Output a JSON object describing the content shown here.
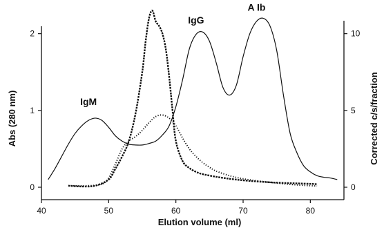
{
  "chart_data": {
    "type": "line",
    "title": "",
    "xlabel": "Elution volume (ml)",
    "ylabel": "Abs (280 nm)",
    "ylabel_right": "Corrected c/s/fraction",
    "xlim": [
      40,
      85
    ],
    "ylim": [
      0,
      2.33
    ],
    "ylim_right": [
      0,
      11.65
    ],
    "xticks": [
      40,
      50,
      60,
      70,
      80
    ],
    "yticks": [
      0,
      1,
      2
    ],
    "yticks_right": [
      0,
      5,
      10
    ],
    "grid": false,
    "legend": "none",
    "annotations": [
      {
        "text": "IgM",
        "x": 47.0,
        "y": 1.07
      },
      {
        "text": "IgG",
        "x": 63.0,
        "y": 2.13
      },
      {
        "text": "A Ib",
        "x": 72.0,
        "y": 2.3
      }
    ],
    "series": [
      {
        "axis": "left",
        "style": "solid",
        "x": [
          41,
          42,
          43,
          44,
          45,
          46,
          47,
          48,
          49,
          50,
          51,
          52,
          53,
          54,
          55,
          56,
          57,
          58,
          59,
          60,
          61,
          62,
          63,
          64,
          65,
          66,
          67,
          68,
          69,
          70,
          71,
          72,
          73,
          74,
          75,
          76,
          77,
          78,
          79,
          80,
          81,
          82,
          83,
          84
        ],
        "y": [
          0.1,
          0.24,
          0.4,
          0.56,
          0.7,
          0.8,
          0.87,
          0.9,
          0.87,
          0.78,
          0.67,
          0.6,
          0.56,
          0.55,
          0.55,
          0.57,
          0.6,
          0.68,
          0.8,
          1.05,
          1.4,
          1.8,
          1.99,
          2.02,
          1.9,
          1.62,
          1.3,
          1.2,
          1.33,
          1.7,
          2.0,
          2.16,
          2.2,
          2.1,
          1.78,
          1.2,
          0.7,
          0.45,
          0.28,
          0.2,
          0.15,
          0.13,
          0.12,
          0.1
        ]
      },
      {
        "axis": "right",
        "style": "dashed",
        "x": [
          44,
          46,
          48,
          50,
          51,
          52,
          53,
          54,
          55,
          55.5,
          56,
          56.5,
          57,
          57.5,
          58,
          58.5,
          59,
          59.5,
          60,
          61,
          62,
          63,
          64,
          66,
          68,
          70,
          72,
          74,
          76,
          78,
          80,
          81
        ],
        "y": [
          0.1,
          0.05,
          0.1,
          0.5,
          1.2,
          2.0,
          3.0,
          4.8,
          7.5,
          9.5,
          11.0,
          11.5,
          10.8,
          10.5,
          10.0,
          9.0,
          7.2,
          5.0,
          3.0,
          1.7,
          1.25,
          1.0,
          0.85,
          0.68,
          0.55,
          0.45,
          0.38,
          0.32,
          0.28,
          0.25,
          0.22,
          0.2
        ]
      },
      {
        "axis": "right",
        "style": "dotted",
        "x": [
          44,
          47,
          49,
          50,
          51,
          52,
          53,
          54,
          55,
          56,
          57,
          58,
          59,
          60,
          61,
          62,
          63,
          64,
          65,
          66,
          68,
          70,
          72,
          74,
          76,
          78,
          80,
          81
        ],
        "y": [
          0.1,
          0.1,
          0.2,
          0.6,
          1.5,
          2.5,
          3.0,
          3.3,
          3.7,
          4.2,
          4.6,
          4.7,
          4.5,
          4.0,
          3.2,
          2.5,
          2.0,
          1.6,
          1.3,
          1.05,
          0.75,
          0.55,
          0.42,
          0.32,
          0.22,
          0.15,
          0.1,
          0.08
        ]
      }
    ]
  }
}
